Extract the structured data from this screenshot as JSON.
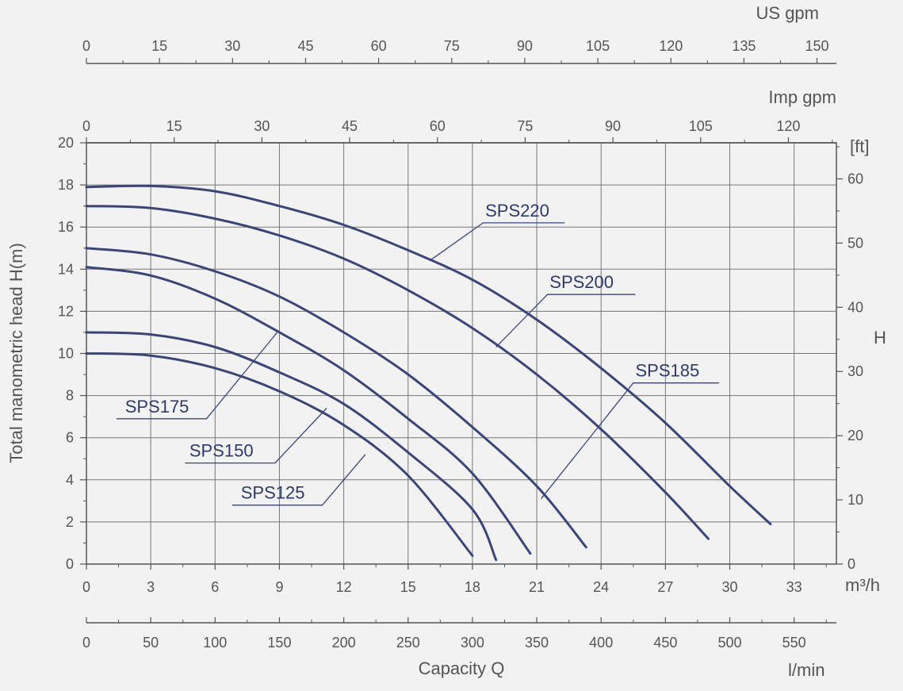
{
  "chart_data": {
    "type": "line",
    "title": "",
    "xlabel": "Capacity Q",
    "ylabel": "Total manometric head H(m)",
    "x_unit": "m³/h",
    "xlim": [
      0,
      35
    ],
    "ylim": [
      0,
      20
    ],
    "grid": true,
    "x_ticks": [
      0,
      3,
      6,
      9,
      12,
      15,
      18,
      21,
      24,
      27,
      30,
      33
    ],
    "y_ticks": [
      0,
      2,
      4,
      6,
      8,
      10,
      12,
      14,
      16,
      18,
      20
    ],
    "right_axis": {
      "label": "H",
      "unit": "[ft]",
      "ticks": [
        0,
        10,
        20,
        30,
        40,
        50,
        60
      ],
      "ft_per_m": 3.2808
    },
    "secondary_x_axes": [
      {
        "id": "lmin",
        "label": "l/min",
        "factor": 16.6667,
        "ticks": [
          0,
          50,
          100,
          150,
          200,
          250,
          300,
          350,
          400,
          450,
          500,
          550
        ]
      },
      {
        "id": "imp",
        "label": "Imp gpm",
        "factor": 3.666,
        "ticks": [
          0,
          15,
          30,
          45,
          60,
          75,
          90,
          105,
          120
        ]
      },
      {
        "id": "us",
        "label": "US gpm",
        "factor": 4.403,
        "ticks": [
          0,
          15,
          30,
          45,
          60,
          75,
          90,
          105,
          120,
          135,
          150
        ]
      }
    ],
    "series": [
      {
        "name": "SPS220",
        "points": [
          [
            0,
            17.9
          ],
          [
            3,
            17.95
          ],
          [
            6,
            17.7
          ],
          [
            9,
            17.0
          ],
          [
            12,
            16.1
          ],
          [
            15,
            14.9
          ],
          [
            18,
            13.5
          ],
          [
            21,
            11.6
          ],
          [
            24,
            9.3
          ],
          [
            27,
            6.7
          ],
          [
            30,
            3.7
          ],
          [
            31.9,
            1.9
          ]
        ]
      },
      {
        "name": "SPS200",
        "points": [
          [
            0,
            17.0
          ],
          [
            3,
            16.9
          ],
          [
            6,
            16.4
          ],
          [
            9,
            15.6
          ],
          [
            12,
            14.5
          ],
          [
            15,
            13.0
          ],
          [
            18,
            11.2
          ],
          [
            21,
            9.0
          ],
          [
            24,
            6.4
          ],
          [
            27,
            3.4
          ],
          [
            29,
            1.2
          ]
        ]
      },
      {
        "name": "SPS185",
        "points": [
          [
            0,
            15.0
          ],
          [
            3,
            14.7
          ],
          [
            6,
            13.9
          ],
          [
            9,
            12.7
          ],
          [
            12,
            11.0
          ],
          [
            15,
            9.0
          ],
          [
            18,
            6.5
          ],
          [
            21,
            3.7
          ],
          [
            23.3,
            0.8
          ]
        ]
      },
      {
        "name": "SPS175",
        "points": [
          [
            0,
            14.1
          ],
          [
            3,
            13.7
          ],
          [
            6,
            12.6
          ],
          [
            9,
            11.0
          ],
          [
            12,
            9.2
          ],
          [
            15,
            6.9
          ],
          [
            18,
            4.3
          ],
          [
            20.7,
            0.5
          ]
        ]
      },
      {
        "name": "SPS150",
        "points": [
          [
            0,
            11.0
          ],
          [
            3,
            10.9
          ],
          [
            6,
            10.3
          ],
          [
            9,
            9.1
          ],
          [
            12,
            7.6
          ],
          [
            15,
            5.3
          ],
          [
            18,
            2.6
          ],
          [
            19.1,
            0.2
          ]
        ]
      },
      {
        "name": "SPS125",
        "points": [
          [
            0,
            10.0
          ],
          [
            3,
            9.9
          ],
          [
            6,
            9.3
          ],
          [
            9,
            8.2
          ],
          [
            12,
            6.6
          ],
          [
            15,
            4.2
          ],
          [
            18,
            0.4
          ]
        ]
      }
    ],
    "label_lines": [
      {
        "series": "SPS220",
        "at": [
          16,
          14.4
        ],
        "elbow": [
          18.5,
          16.2
        ],
        "end": [
          22.3,
          16.2
        ],
        "text_pos": [
          18.6,
          16.5
        ]
      },
      {
        "series": "SPS200",
        "at": [
          19.1,
          10.3
        ],
        "elbow": [
          21.5,
          12.8
        ],
        "end": [
          25.6,
          12.8
        ],
        "text_pos": [
          21.6,
          13.1
        ]
      },
      {
        "series": "SPS185",
        "at": [
          21.2,
          3.1
        ],
        "elbow": [
          25.5,
          8.6
        ],
        "end": [
          29.5,
          8.6
        ],
        "text_pos": [
          25.6,
          8.9
        ]
      },
      {
        "series": "SPS175",
        "at": [
          8.9,
          11.0
        ],
        "elbow": [
          5.6,
          6.9
        ],
        "end": [
          1.4,
          6.9
        ],
        "text_pos": [
          1.8,
          7.2
        ]
      },
      {
        "series": "SPS150",
        "at": [
          11.2,
          7.4
        ],
        "elbow": [
          8.8,
          4.8
        ],
        "end": [
          4.6,
          4.8
        ],
        "text_pos": [
          4.8,
          5.1
        ]
      },
      {
        "series": "SPS125",
        "at": [
          13.0,
          5.2
        ],
        "elbow": [
          11.0,
          2.8
        ],
        "end": [
          6.8,
          2.8
        ],
        "text_pos": [
          7.2,
          3.1
        ]
      }
    ]
  }
}
